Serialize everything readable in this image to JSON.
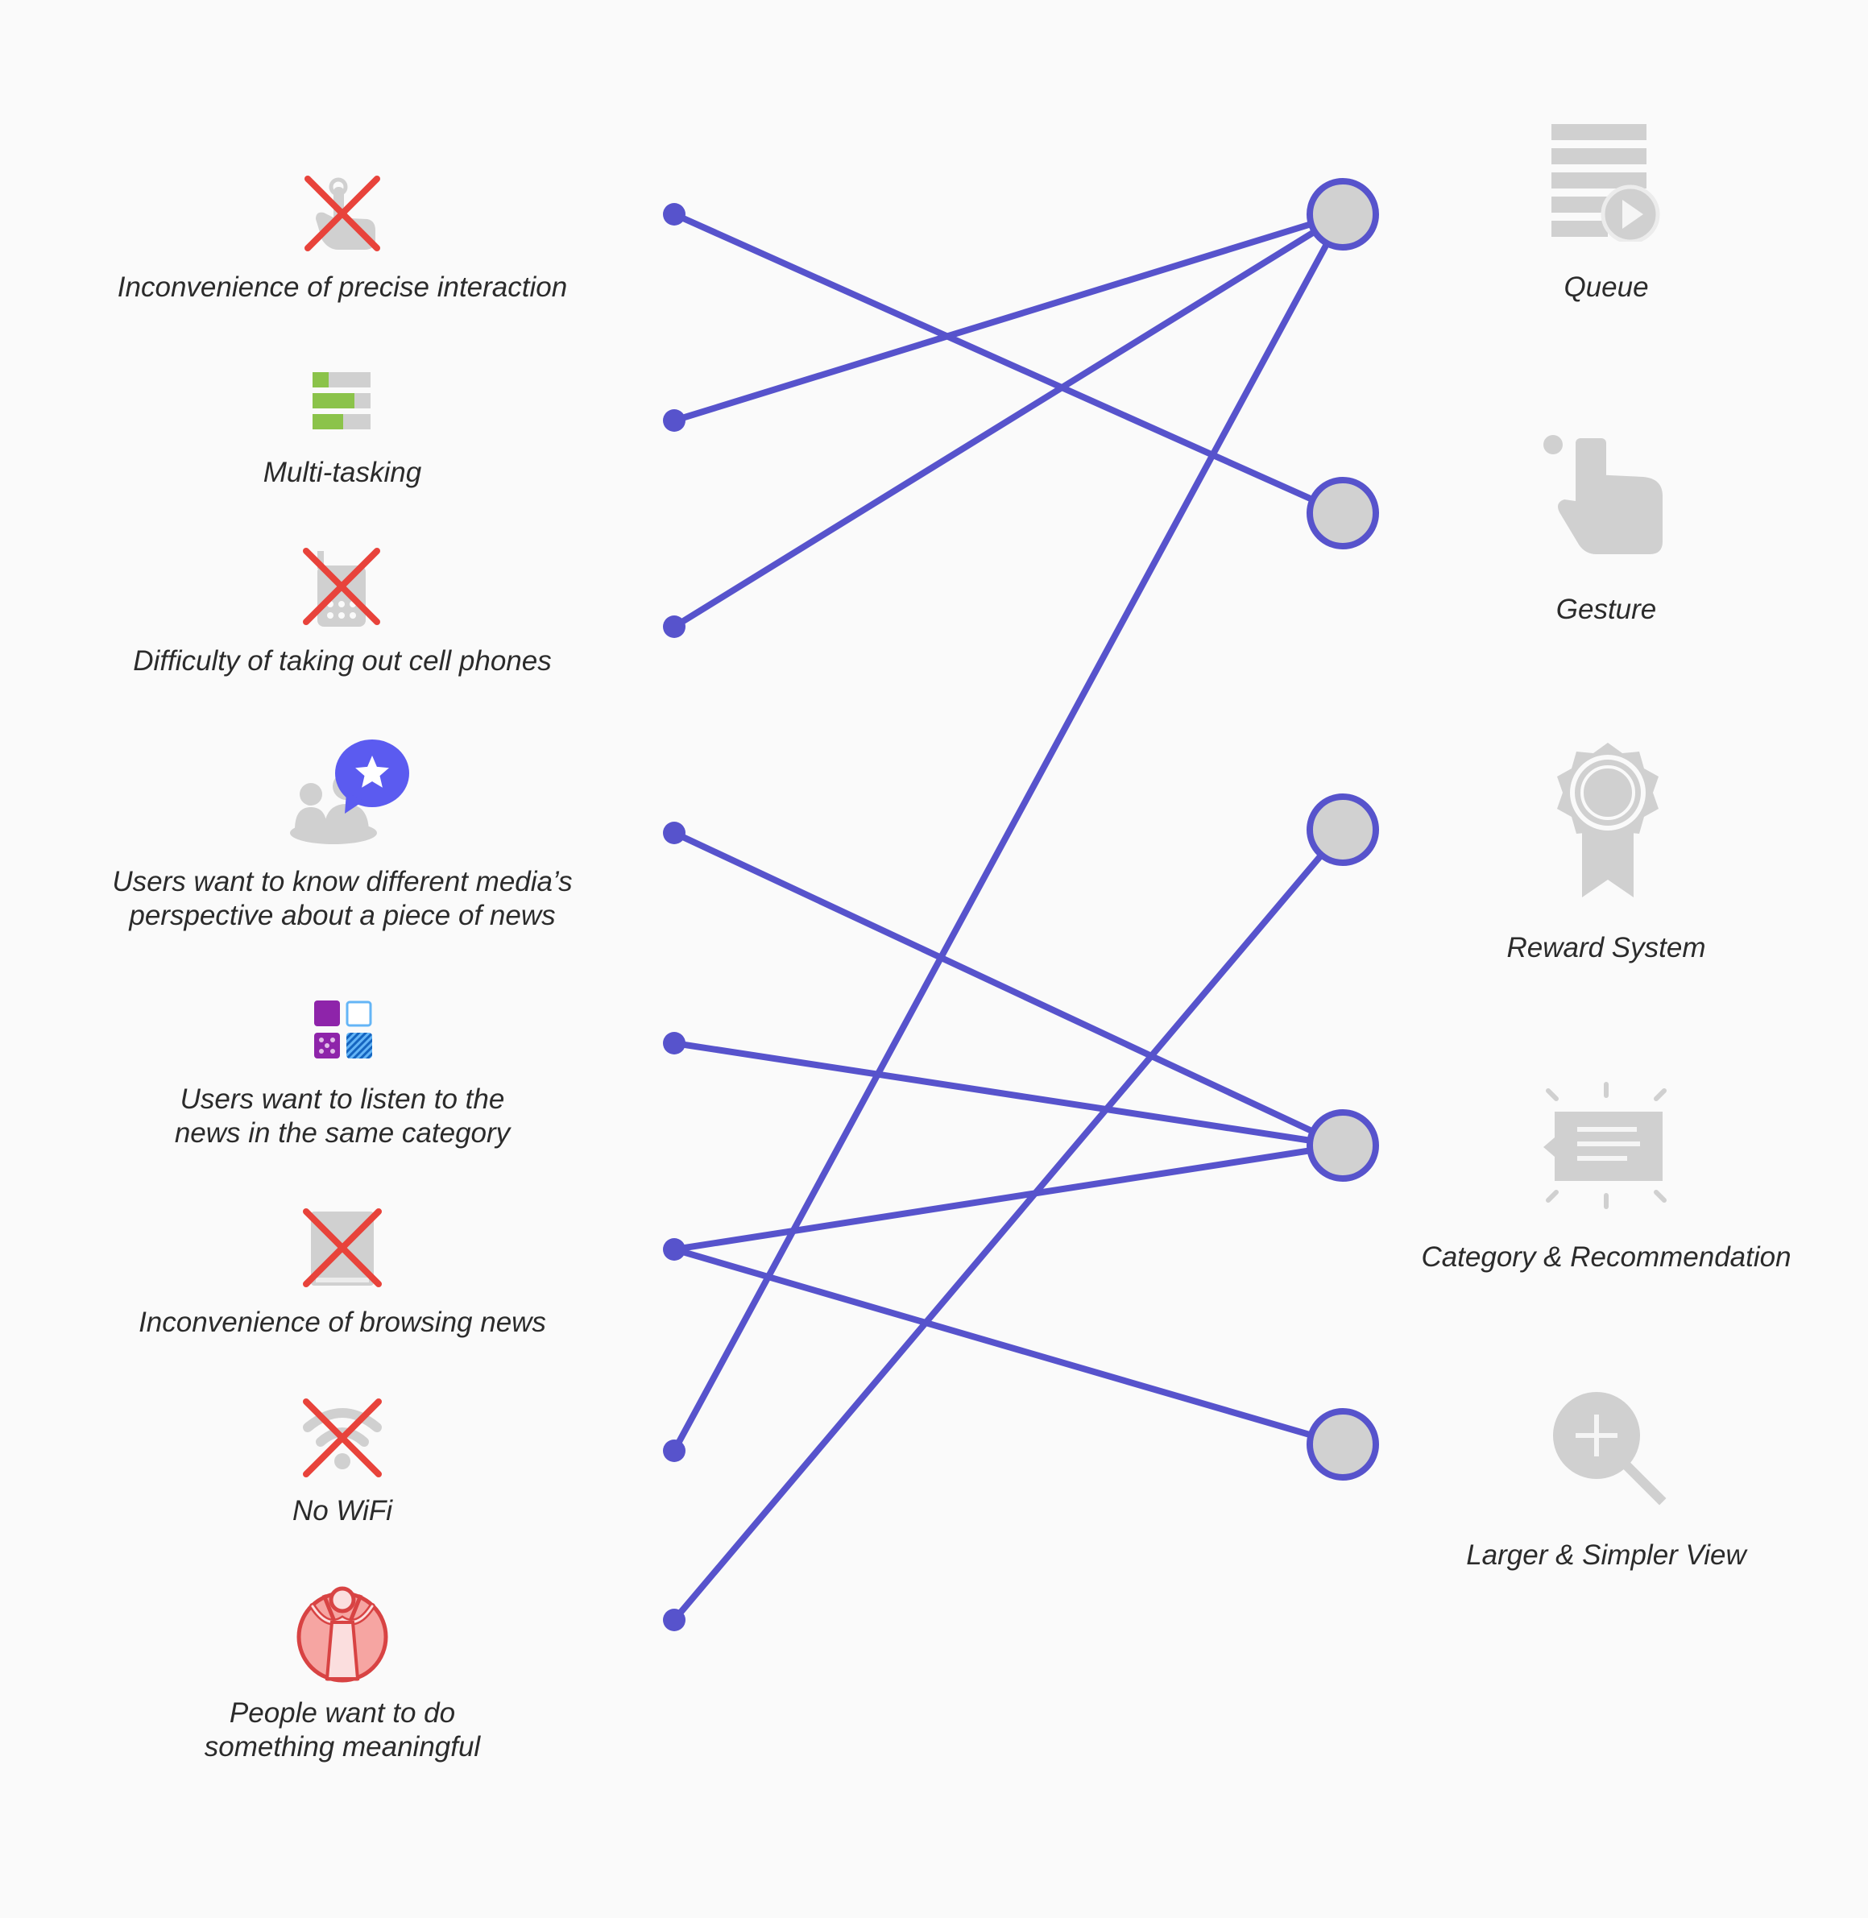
{
  "problems": [
    {
      "label": "Inconvenience of precise interaction",
      "icon": "crossed-touch-icon"
    },
    {
      "label": "Multi-tasking",
      "icon": "progress-bars-icon"
    },
    {
      "label": "Difficulty of taking out cell phones",
      "icon": "crossed-phone-icon"
    },
    {
      "label": "Users want to know different media’s\nperspective about a piece of news",
      "icon": "people-chat-star-icon"
    },
    {
      "label": "Users want to listen to the\nnews in the same category",
      "icon": "category-tiles-icon"
    },
    {
      "label": "Inconvenience of browsing news",
      "icon": "crossed-tablet-icon"
    },
    {
      "label": "No WiFi",
      "icon": "crossed-wifi-icon"
    },
    {
      "label": "People want to do\nsomething meaningful",
      "icon": "charity-person-icon"
    }
  ],
  "features": [
    {
      "label": "Queue",
      "icon": "queue-list-icon"
    },
    {
      "label": "Gesture",
      "icon": "gesture-hand-icon"
    },
    {
      "label": "Reward System",
      "icon": "reward-badge-icon"
    },
    {
      "label": "Category & Recommendation",
      "icon": "recommendation-card-icon"
    },
    {
      "label": "Larger & Simpler View",
      "icon": "zoom-in-icon"
    }
  ],
  "links": [
    {
      "problem": 0,
      "feature": 1
    },
    {
      "problem": 1,
      "feature": 0
    },
    {
      "problem": 2,
      "feature": 0
    },
    {
      "problem": 3,
      "feature": 3
    },
    {
      "problem": 4,
      "feature": 3
    },
    {
      "problem": 5,
      "feature": 3
    },
    {
      "problem": 5,
      "feature": 4
    },
    {
      "problem": 6,
      "feature": 0
    },
    {
      "problem": 7,
      "feature": 2
    }
  ],
  "colors": {
    "link": "#5753cc",
    "node_fill": "#d1d1d1",
    "icon_gray": "#d0d0d0",
    "cross": "#e8433b",
    "green": "#8bc34a",
    "purple": "#8e24aa",
    "blue": "#5b5bf0",
    "coral": "#f08080",
    "label": "#2b2b2b"
  }
}
